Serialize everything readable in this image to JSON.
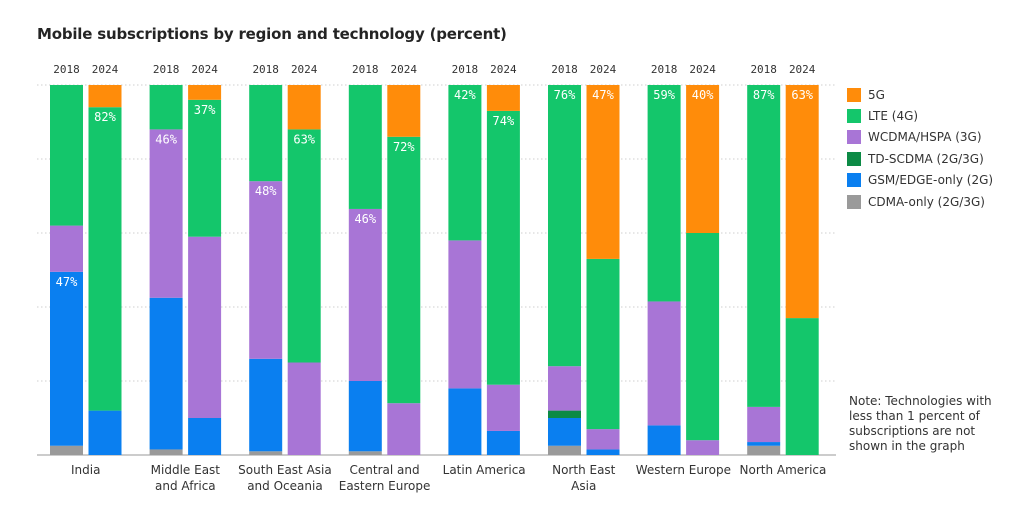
{
  "title": "Mobile subscriptions by region and technology (percent)",
  "note": "Note: Technologies with less than 1 percent of subscriptions are not shown in the graph",
  "colors": {
    "5G": "#ff8c0a",
    "LTE (4G)": "#14c66b",
    "WCDMA/HSPA (3G)": "#a875d6",
    "TD-SCDMA (2G/3G)": "#0c8a45",
    "GSM/EDGE-only (2G)": "#0a7ff0",
    "CDMA-only (2G/3G)": "#9a9a9a"
  },
  "chart_data": {
    "type": "bar",
    "stacked": true,
    "title": "Mobile subscriptions by region and technology (percent)",
    "xlabel": "",
    "ylabel": "",
    "ylim": [
      0,
      100
    ],
    "grid": true,
    "legend_position": "right",
    "years": [
      "2018",
      "2024"
    ],
    "series_order_bottom_to_top": [
      "CDMA-only (2G/3G)",
      "GSM/EDGE-only (2G)",
      "TD-SCDMA (2G/3G)",
      "WCDMA/HSPA (3G)",
      "LTE (4G)",
      "5G"
    ],
    "legend_order": [
      "5G",
      "LTE (4G)",
      "WCDMA/HSPA (3G)",
      "TD-SCDMA (2G/3G)",
      "GSM/EDGE-only (2G)",
      "CDMA-only (2G/3G)"
    ],
    "regions": [
      {
        "name": [
          "India"
        ],
        "bars": [
          {
            "year": "2018",
            "values": {
              "CDMA-only (2G/3G)": 2.5,
              "GSM/EDGE-only (2G)": 47,
              "TD-SCDMA (2G/3G)": 0,
              "WCDMA/HSPA (3G)": 12.5,
              "LTE (4G)": 38,
              "5G": 0
            },
            "label": {
              "series": "GSM/EDGE-only (2G)",
              "text": "47%"
            }
          },
          {
            "year": "2024",
            "values": {
              "CDMA-only (2G/3G)": 0,
              "GSM/EDGE-only (2G)": 12,
              "TD-SCDMA (2G/3G)": 0,
              "WCDMA/HSPA (3G)": 0,
              "LTE (4G)": 82,
              "5G": 6
            },
            "label": {
              "series": "LTE (4G)",
              "text": "82%"
            }
          }
        ]
      },
      {
        "name": [
          "Middle East",
          "and Africa"
        ],
        "bars": [
          {
            "year": "2018",
            "values": {
              "CDMA-only (2G/3G)": 1.5,
              "GSM/EDGE-only (2G)": 41,
              "TD-SCDMA (2G/3G)": 0,
              "WCDMA/HSPA (3G)": 45.5,
              "LTE (4G)": 12,
              "5G": 0
            },
            "label": {
              "series": "WCDMA/HSPA (3G)",
              "text": "46%"
            }
          },
          {
            "year": "2024",
            "values": {
              "CDMA-only (2G/3G)": 0,
              "GSM/EDGE-only (2G)": 10,
              "TD-SCDMA (2G/3G)": 0,
              "WCDMA/HSPA (3G)": 49,
              "LTE (4G)": 37,
              "5G": 4
            },
            "label": {
              "series": "LTE (4G)",
              "text": "37%"
            }
          }
        ]
      },
      {
        "name": [
          "South East Asia",
          "and Oceania"
        ],
        "bars": [
          {
            "year": "2018",
            "values": {
              "CDMA-only (2G/3G)": 1,
              "GSM/EDGE-only (2G)": 25,
              "TD-SCDMA (2G/3G)": 0,
              "WCDMA/HSPA (3G)": 48,
              "LTE (4G)": 26,
              "5G": 0
            },
            "label": {
              "series": "WCDMA/HSPA (3G)",
              "text": "48%"
            }
          },
          {
            "year": "2024",
            "values": {
              "CDMA-only (2G/3G)": 0,
              "GSM/EDGE-only (2G)": 0,
              "TD-SCDMA (2G/3G)": 0,
              "WCDMA/HSPA (3G)": 25,
              "LTE (4G)": 63,
              "5G": 12
            },
            "label": {
              "series": "LTE (4G)",
              "text": "63%"
            }
          }
        ]
      },
      {
        "name": [
          "Central and",
          "Eastern Europe"
        ],
        "bars": [
          {
            "year": "2018",
            "values": {
              "CDMA-only (2G/3G)": 1,
              "GSM/EDGE-only (2G)": 19,
              "TD-SCDMA (2G/3G)": 0,
              "WCDMA/HSPA (3G)": 46.5,
              "LTE (4G)": 33.5,
              "5G": 0
            },
            "label": {
              "series": "WCDMA/HSPA (3G)",
              "text": "46%"
            }
          },
          {
            "year": "2024",
            "values": {
              "CDMA-only (2G/3G)": 0,
              "GSM/EDGE-only (2G)": 0,
              "TD-SCDMA (2G/3G)": 0,
              "WCDMA/HSPA (3G)": 14,
              "LTE (4G)": 72,
              "5G": 14
            },
            "label": {
              "series": "LTE (4G)",
              "text": "72%"
            }
          }
        ]
      },
      {
        "name": [
          "Latin America"
        ],
        "bars": [
          {
            "year": "2018",
            "values": {
              "CDMA-only (2G/3G)": 0,
              "GSM/EDGE-only (2G)": 18,
              "TD-SCDMA (2G/3G)": 0,
              "WCDMA/HSPA (3G)": 40,
              "LTE (4G)": 42,
              "5G": 0
            },
            "label": {
              "series": "LTE (4G)",
              "text": "42%"
            }
          },
          {
            "year": "2024",
            "values": {
              "CDMA-only (2G/3G)": 0,
              "GSM/EDGE-only (2G)": 6.5,
              "TD-SCDMA (2G/3G)": 0,
              "WCDMA/HSPA (3G)": 12.5,
              "LTE (4G)": 74,
              "5G": 7
            },
            "label": {
              "series": "LTE (4G)",
              "text": "74%"
            }
          }
        ]
      },
      {
        "name": [
          "North East",
          "Asia"
        ],
        "bars": [
          {
            "year": "2018",
            "values": {
              "CDMA-only (2G/3G)": 2.5,
              "GSM/EDGE-only (2G)": 7.5,
              "TD-SCDMA (2G/3G)": 2,
              "WCDMA/HSPA (3G)": 12,
              "LTE (4G)": 76,
              "5G": 0
            },
            "label": {
              "series": "LTE (4G)",
              "text": "76%"
            }
          },
          {
            "year": "2024",
            "values": {
              "CDMA-only (2G/3G)": 0,
              "GSM/EDGE-only (2G)": 1.5,
              "TD-SCDMA (2G/3G)": 0,
              "WCDMA/HSPA (3G)": 5.5,
              "LTE (4G)": 46,
              "5G": 47
            },
            "label": {
              "series": "5G",
              "text": "47%"
            }
          }
        ]
      },
      {
        "name": [
          "Western Europe"
        ],
        "bars": [
          {
            "year": "2018",
            "values": {
              "CDMA-only (2G/3G)": 0,
              "GSM/EDGE-only (2G)": 8,
              "TD-SCDMA (2G/3G)": 0,
              "WCDMA/HSPA (3G)": 33.5,
              "LTE (4G)": 58.5,
              "5G": 0
            },
            "label": {
              "series": "LTE (4G)",
              "text": "59%"
            }
          },
          {
            "year": "2024",
            "values": {
              "CDMA-only (2G/3G)": 0,
              "GSM/EDGE-only (2G)": 0,
              "TD-SCDMA (2G/3G)": 0,
              "WCDMA/HSPA (3G)": 4,
              "LTE (4G)": 56,
              "5G": 40
            },
            "label": {
              "series": "5G",
              "text": "40%"
            }
          }
        ]
      },
      {
        "name": [
          "North America"
        ],
        "bars": [
          {
            "year": "2018",
            "values": {
              "CDMA-only (2G/3G)": 2.5,
              "GSM/EDGE-only (2G)": 1,
              "TD-SCDMA (2G/3G)": 0,
              "WCDMA/HSPA (3G)": 9.5,
              "LTE (4G)": 87,
              "5G": 0
            },
            "label": {
              "series": "LTE (4G)",
              "text": "87%"
            }
          },
          {
            "year": "2024",
            "values": {
              "CDMA-only (2G/3G)": 0,
              "GSM/EDGE-only (2G)": 0,
              "TD-SCDMA (2G/3G)": 0,
              "WCDMA/HSPA (3G)": 0,
              "LTE (4G)": 37,
              "5G": 63
            },
            "label": {
              "series": "5G",
              "text": "63%"
            }
          }
        ]
      }
    ]
  }
}
